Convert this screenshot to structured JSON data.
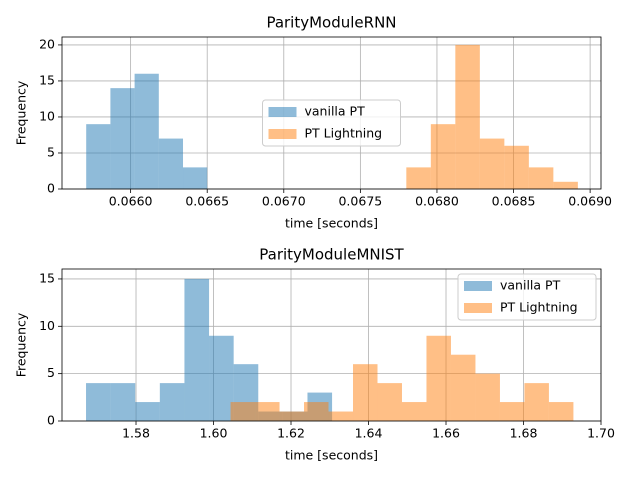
{
  "chart_data": [
    {
      "type": "histogram",
      "title": "ParityModuleRNN",
      "xlabel": "time [seconds]",
      "ylabel": "Frequency",
      "series": [
        {
          "name": "vanilla PT",
          "color": "#1f77b4",
          "bins": [
            0.06571,
            0.065868,
            0.066026,
            0.066184,
            0.066342,
            0.0665
          ],
          "values": [
            9,
            14,
            16,
            7,
            3
          ]
        },
        {
          "name": "PT Lightning",
          "color": "#ff7f0e",
          "bins": [
            0.0678,
            0.06796,
            0.06812,
            0.06828,
            0.06844,
            0.0686,
            0.06876,
            0.06892
          ],
          "values": [
            3,
            9,
            20,
            7,
            6,
            3,
            1
          ]
        }
      ],
      "xlim": [
        0.065552,
        0.069071
      ],
      "ylim": [
        0,
        21.1
      ],
      "xticks": [
        {
          "value": 0.066,
          "label": "0.0660"
        },
        {
          "value": 0.0665,
          "label": "0.0665"
        },
        {
          "value": 0.067,
          "label": "0.0670"
        },
        {
          "value": 0.0675,
          "label": "0.0675"
        },
        {
          "value": 0.068,
          "label": "0.0680"
        },
        {
          "value": 0.0685,
          "label": "0.0685"
        },
        {
          "value": 0.069,
          "label": "0.0690"
        }
      ],
      "yticks": [
        0,
        5,
        10,
        15,
        20
      ],
      "grid": true,
      "legend": "center"
    },
    {
      "type": "histogram",
      "title": "ParityModuleMNIST",
      "xlabel": "time [seconds]",
      "ylabel": "Frequency",
      "series": [
        {
          "name": "vanilla PT",
          "color": "#1f77b4",
          "bins": [
            1.5671,
            1.57345,
            1.5798,
            1.58615,
            1.5925,
            1.59885,
            1.6052,
            1.61155,
            1.6179,
            1.62425,
            1.6306
          ],
          "values": [
            4,
            4,
            2,
            4,
            15,
            9,
            6,
            1,
            1,
            3
          ]
        },
        {
          "name": "PT Lightning",
          "color": "#ff7f0e",
          "bins": [
            1.6044,
            1.61072,
            1.61704,
            1.62336,
            1.62968,
            1.636,
            1.64232,
            1.64864,
            1.65496,
            1.66128,
            1.6676,
            1.67392,
            1.68024,
            1.68656,
            1.69288
          ],
          "values": [
            2,
            2,
            1,
            2,
            1,
            6,
            4,
            2,
            9,
            7,
            5,
            2,
            4,
            2
          ]
        }
      ],
      "xlim": [
        1.5609,
        1.7
      ],
      "ylim": [
        0,
        16.05
      ],
      "xticks": [
        1.58,
        {
          "value": 1.6,
          "label": "1.60"
        },
        1.62,
        1.64,
        1.66,
        1.68,
        {
          "value": 1.7,
          "label": "1.70"
        }
      ],
      "yticks": [
        0,
        5,
        10,
        15
      ],
      "grid": true,
      "legend": "upper right"
    }
  ]
}
